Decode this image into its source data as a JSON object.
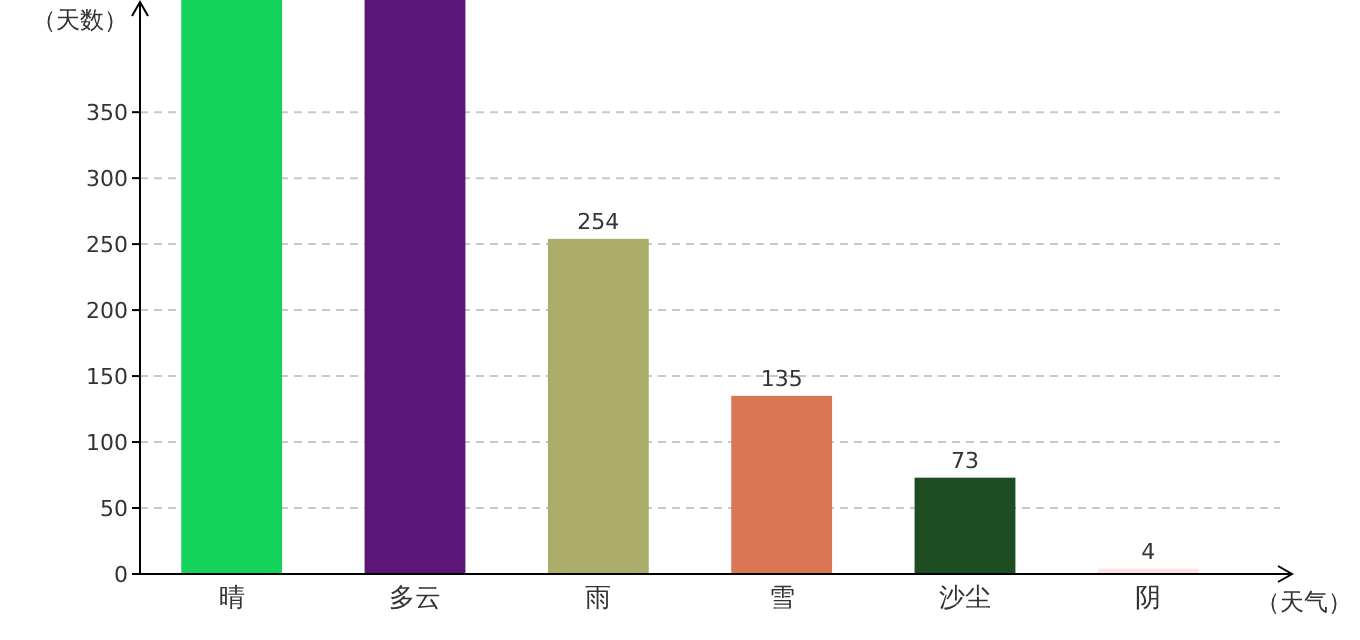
{
  "chart_data": {
    "type": "bar",
    "xlabel": "（天气）",
    "ylabel": "（天数）",
    "categories": [
      "晴",
      "多云",
      "雨",
      "雪",
      "沙尘",
      "阴"
    ],
    "values": [
      435,
      435,
      254,
      135,
      73,
      4
    ],
    "value_labels": [
      null,
      null,
      "254",
      "135",
      "73",
      "4"
    ],
    "colors": [
      "#14d35a",
      "#5c1677",
      "#adad6b",
      "#d97755",
      "#1f4d22",
      "#fde3e3"
    ],
    "ylim": [
      0,
      435
    ],
    "yticks": [
      0,
      50,
      100,
      150,
      200,
      250,
      300,
      350
    ],
    "grid": "y"
  }
}
